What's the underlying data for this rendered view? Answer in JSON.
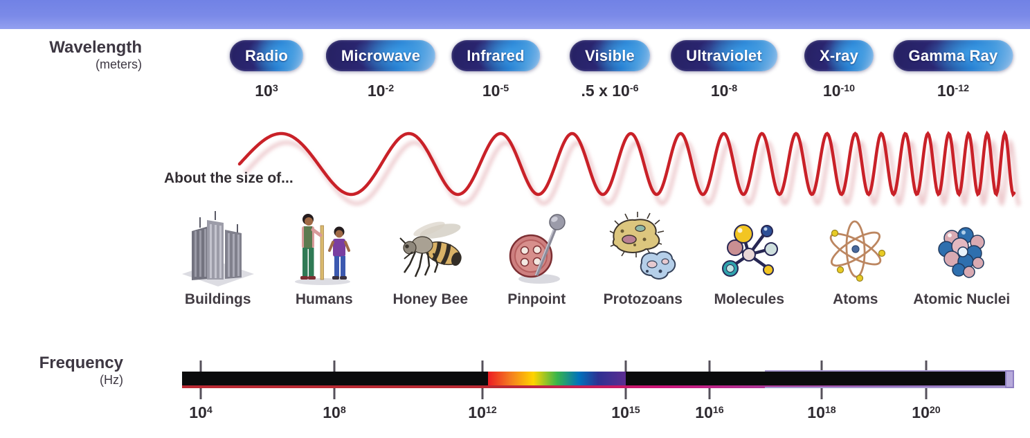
{
  "wavelength_axis": {
    "title": "Wavelength",
    "unit": "(meters)",
    "bands": [
      {
        "label": "Radio",
        "value": {
          "pre": "",
          "base": "10",
          "exp": "3"
        }
      },
      {
        "label": "Microwave",
        "value": {
          "pre": "",
          "base": "10",
          "exp": "-2"
        }
      },
      {
        "label": "Infrared",
        "value": {
          "pre": "",
          "base": "10",
          "exp": "-5"
        }
      },
      {
        "label": "Visible",
        "value": {
          "pre": ".5 x ",
          "base": "10",
          "exp": "-6"
        }
      },
      {
        "label": "Ultraviolet",
        "value": {
          "pre": "",
          "base": "10",
          "exp": "-8"
        }
      },
      {
        "label": "X-ray",
        "value": {
          "pre": "",
          "base": "10",
          "exp": "-10"
        }
      },
      {
        "label": "Gamma Ray",
        "value": {
          "pre": "",
          "base": "10",
          "exp": "-12"
        }
      }
    ]
  },
  "size_comparison": {
    "caption": "About the size of...",
    "items": [
      {
        "label": "Buildings",
        "icon": "buildings-icon"
      },
      {
        "label": "Humans",
        "icon": "humans-icon"
      },
      {
        "label": "Honey Bee",
        "icon": "honey-bee-icon"
      },
      {
        "label": "Pinpoint",
        "icon": "pinpoint-icon"
      },
      {
        "label": "Protozoans",
        "icon": "protozoans-icon"
      },
      {
        "label": "Molecules",
        "icon": "molecules-icon"
      },
      {
        "label": "Atoms",
        "icon": "atoms-icon"
      },
      {
        "label": "Atomic Nuclei",
        "icon": "atomic-nuclei-icon"
      }
    ]
  },
  "frequency_axis": {
    "title": "Frequency",
    "unit": "(Hz)",
    "ticks": [
      {
        "base": "10",
        "exp": "4"
      },
      {
        "base": "10",
        "exp": "8"
      },
      {
        "base": "10",
        "exp": "12"
      },
      {
        "base": "10",
        "exp": "15"
      },
      {
        "base": "10",
        "exp": "16"
      },
      {
        "base": "10",
        "exp": "18"
      },
      {
        "base": "10",
        "exp": "20"
      }
    ]
  },
  "colors": {
    "banner_top": "#7182e5",
    "banner_bottom": "#93a0f0",
    "pill_dark": "#262162",
    "pill_bright": "#1d74ca",
    "wave_red": "#c92128",
    "bar_black": "#0b0b0c",
    "visible_rainbow": [
      "#ec1c24",
      "#f47b20",
      "#ffd400",
      "#39b54a",
      "#0072bc",
      "#2e3192",
      "#5c2d91"
    ],
    "bar_underline_left": "#bb2a33",
    "bar_underline_right": "#a292cf",
    "end_cap": "#b7aadb"
  }
}
